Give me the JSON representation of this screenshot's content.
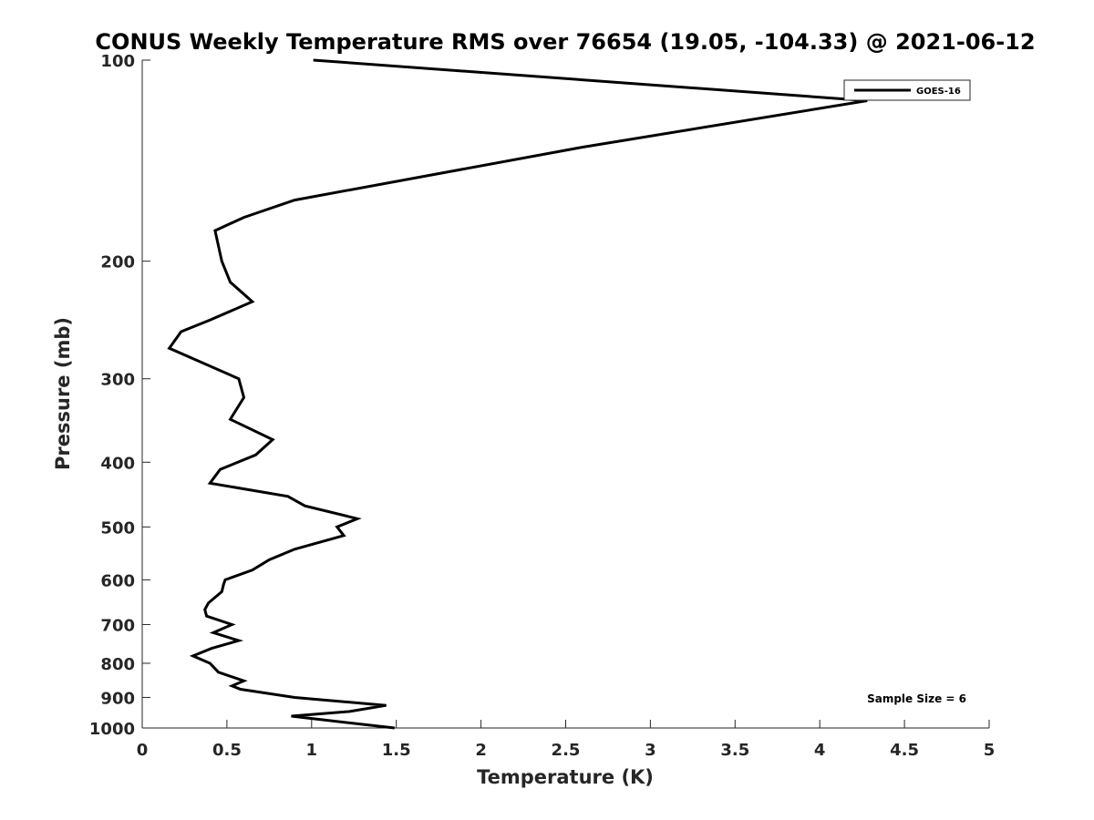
{
  "chart_data": {
    "type": "line",
    "title": "CONUS Weekly Temperature RMS over 76654 (19.05, -104.33) @ 2021-06-12",
    "xlabel": "Temperature (K)",
    "ylabel": "Pressure (mb)",
    "xlim": [
      0,
      5
    ],
    "ylim": [
      100,
      1000
    ],
    "y_scale": "log",
    "y_reversed": true,
    "x_ticks": [
      "0",
      "0.5",
      "1",
      "1.5",
      "2",
      "2.5",
      "3",
      "3.5",
      "4",
      "4.5",
      "5"
    ],
    "y_ticks": [
      "100",
      "200",
      "300",
      "400",
      "500",
      "600",
      "700",
      "800",
      "900",
      "1000"
    ],
    "grid": false,
    "legend_position": "top-right",
    "annotation": "Sample Size = 6",
    "series": [
      {
        "name": "GOES-16",
        "color": "#000000",
        "points": [
          [
            1.01,
            100
          ],
          [
            4.28,
            115
          ],
          [
            2.6,
            135
          ],
          [
            0.9,
            162
          ],
          [
            0.6,
            172
          ],
          [
            0.43,
            180
          ],
          [
            0.47,
            200
          ],
          [
            0.52,
            215
          ],
          [
            0.65,
            230
          ],
          [
            0.4,
            245
          ],
          [
            0.23,
            255
          ],
          [
            0.16,
            270
          ],
          [
            0.57,
            300
          ],
          [
            0.6,
            320
          ],
          [
            0.52,
            345
          ],
          [
            0.77,
            370
          ],
          [
            0.67,
            390
          ],
          [
            0.46,
            410
          ],
          [
            0.4,
            430
          ],
          [
            0.86,
            450
          ],
          [
            0.96,
            465
          ],
          [
            1.27,
            486
          ],
          [
            1.15,
            500
          ],
          [
            1.19,
            515
          ],
          [
            0.9,
            540
          ],
          [
            0.75,
            560
          ],
          [
            0.65,
            580
          ],
          [
            0.49,
            600
          ],
          [
            0.48,
            610
          ],
          [
            0.47,
            625
          ],
          [
            0.39,
            650
          ],
          [
            0.37,
            665
          ],
          [
            0.38,
            680
          ],
          [
            0.53,
            700
          ],
          [
            0.42,
            720
          ],
          [
            0.57,
            740
          ],
          [
            0.41,
            760
          ],
          [
            0.3,
            780
          ],
          [
            0.4,
            800
          ],
          [
            0.45,
            825
          ],
          [
            0.6,
            850
          ],
          [
            0.53,
            865
          ],
          [
            0.58,
            875
          ],
          [
            0.9,
            900
          ],
          [
            1.44,
            925
          ],
          [
            1.22,
            945
          ],
          [
            0.88,
            960
          ],
          [
            1.03,
            970
          ],
          [
            1.49,
            1000
          ]
        ]
      }
    ]
  }
}
